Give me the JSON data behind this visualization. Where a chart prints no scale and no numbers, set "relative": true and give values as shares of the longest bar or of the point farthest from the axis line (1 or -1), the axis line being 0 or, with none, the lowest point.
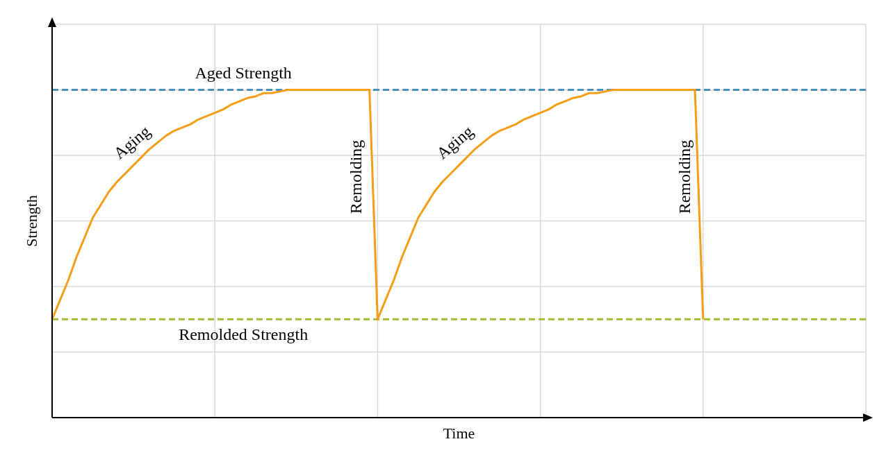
{
  "chart_data": {
    "type": "line",
    "xlabel": "Time",
    "ylabel": "Strength",
    "relative": true,
    "categories": [
      null,
      null,
      null,
      null,
      null,
      null,
      null,
      null,
      null,
      null,
      null,
      null,
      null,
      null,
      null,
      null,
      null,
      null,
      null,
      null,
      null,
      null,
      null,
      null,
      null,
      null,
      null,
      null,
      null,
      null,
      null,
      null,
      null,
      null,
      null,
      null,
      null,
      null,
      null,
      null,
      null,
      null,
      null,
      null,
      null,
      null,
      null,
      null,
      null,
      null,
      null,
      null,
      null,
      null,
      null,
      null,
      null,
      null,
      null,
      null,
      null,
      null,
      null,
      null,
      null,
      null,
      null,
      null,
      null,
      null,
      null,
      null,
      null,
      null,
      null,
      null,
      null,
      null,
      null,
      null,
      null,
      null,
      null,
      null,
      null,
      null,
      null,
      null,
      null,
      null,
      null,
      null,
      null,
      null,
      null,
      null,
      null,
      null,
      null,
      null,
      null
    ],
    "grid": true,
    "line_style": "solid",
    "series": [
      {
        "color": "#f59d16",
        "values": [
          0.3,
          0.36,
          0.42,
          0.49,
          0.55,
          0.61,
          0.65,
          0.69,
          0.72,
          0.745,
          0.77,
          0.795,
          0.82,
          0.84,
          0.86,
          0.875,
          0.885,
          0.895,
          0.91,
          0.92,
          0.93,
          0.94,
          0.955,
          0.965,
          0.975,
          0.98,
          0.99,
          0.99,
          0.995,
          1,
          1,
          1,
          1,
          1,
          1,
          1,
          1,
          1,
          1,
          1,
          0.3,
          0.36,
          0.42,
          0.49,
          0.55,
          0.61,
          0.65,
          0.69,
          0.72,
          0.745,
          0.77,
          0.795,
          0.82,
          0.84,
          0.86,
          0.875,
          0.885,
          0.895,
          0.91,
          0.92,
          0.93,
          0.94,
          0.955,
          0.965,
          0.975,
          0.98,
          0.99,
          0.99,
          0.995,
          1,
          1,
          1,
          1,
          1,
          1,
          1,
          1,
          1,
          1,
          1,
          0.3,
          null,
          null,
          null,
          null,
          null,
          null,
          null,
          null,
          null,
          null,
          null,
          null,
          null,
          null,
          null,
          null,
          null,
          null,
          null,
          null
        ]
      }
    ],
    "ref_lines": [
      {
        "axis": "y",
        "value": 1,
        "label": "Aged Strength",
        "color": "#4a8fb5",
        "line_style": "dashed"
      },
      {
        "axis": "y",
        "value": 0.3,
        "label": "Remolded Strength",
        "color": "#a8b832",
        "line_style": "dashed"
      }
    ],
    "annotations": [
      "Aging",
      "Remolding",
      "Aging",
      "Remolding"
    ]
  }
}
